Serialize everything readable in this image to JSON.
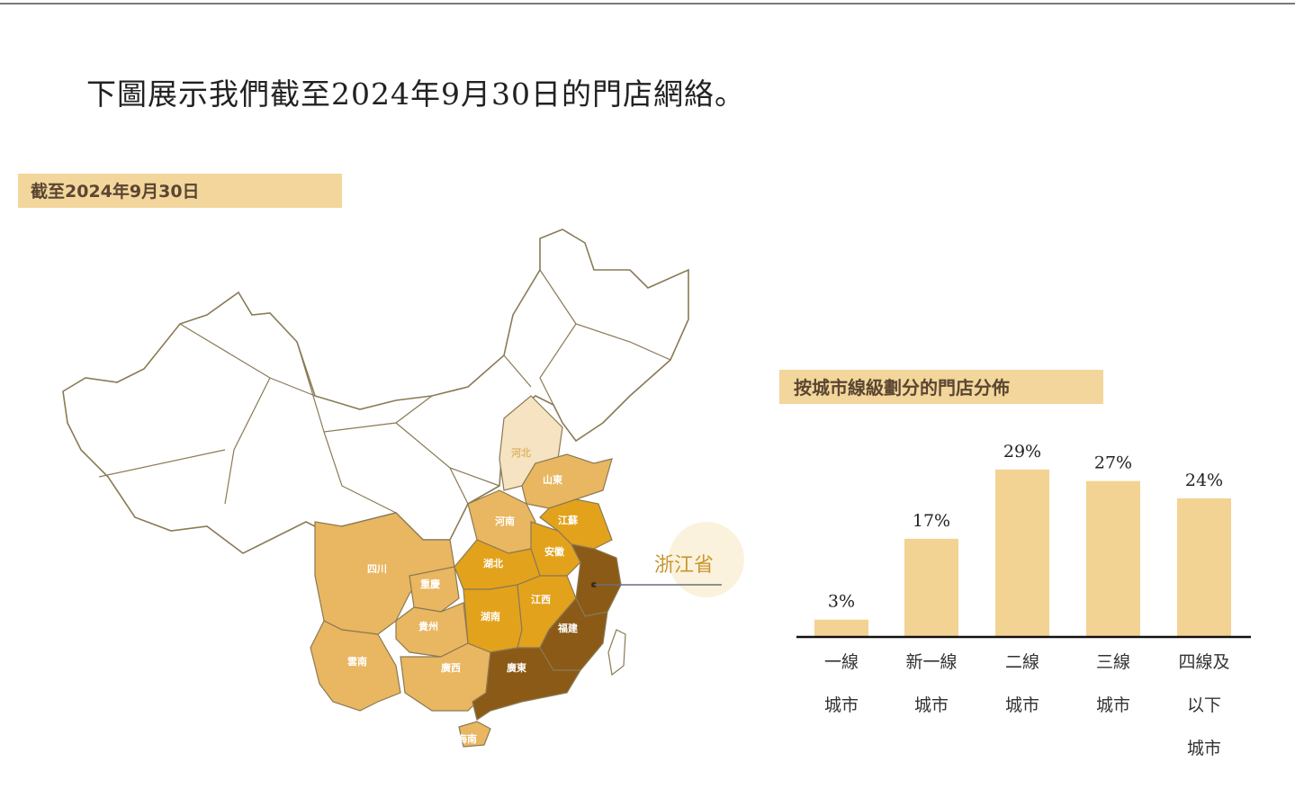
{
  "heading": "下圖展示我們截至2024年9月30日的門店網絡。",
  "map": {
    "tag": "截至2024年9月30日",
    "highlight_label": "浙江省",
    "colors": {
      "lightest": "#f6e3c2",
      "light": "#e9b661",
      "medium": "#e3a21c",
      "dark": "#8b5a17",
      "border": "#8a7a55"
    },
    "provinces": [
      {
        "name": "河北",
        "shade": "lightest"
      },
      {
        "name": "山東",
        "shade": "light"
      },
      {
        "name": "河南",
        "shade": "light"
      },
      {
        "name": "江蘇",
        "shade": "medium"
      },
      {
        "name": "安徽",
        "shade": "medium"
      },
      {
        "name": "湖北",
        "shade": "medium"
      },
      {
        "name": "湖南",
        "shade": "medium"
      },
      {
        "name": "江西",
        "shade": "medium"
      },
      {
        "name": "四川",
        "shade": "light"
      },
      {
        "name": "重慶",
        "shade": "light"
      },
      {
        "name": "貴州",
        "shade": "light"
      },
      {
        "name": "雲南",
        "shade": "light"
      },
      {
        "name": "廣西",
        "shade": "light"
      },
      {
        "name": "廣東",
        "shade": "dark"
      },
      {
        "name": "福建",
        "shade": "dark"
      },
      {
        "name": "海南",
        "shade": "light"
      },
      {
        "name": "浙江",
        "shade": "dark"
      }
    ]
  },
  "chart_data": {
    "type": "bar",
    "title": "按城市線級劃分的門店分佈",
    "categories": [
      "一線城市",
      "新一線城市",
      "二線城市",
      "三線城市",
      "四線及以下城市"
    ],
    "category_lines": [
      [
        "一線",
        "城市"
      ],
      [
        "新一線",
        "城市"
      ],
      [
        "二線",
        "城市"
      ],
      [
        "三線",
        "城市"
      ],
      [
        "四線及",
        "以下",
        "城市"
      ]
    ],
    "values": [
      3,
      17,
      29,
      27,
      24
    ],
    "value_labels": [
      "3%",
      "17%",
      "29%",
      "27%",
      "24%"
    ],
    "unit": "%",
    "bar_color": "#f3d393",
    "grid": false
  }
}
